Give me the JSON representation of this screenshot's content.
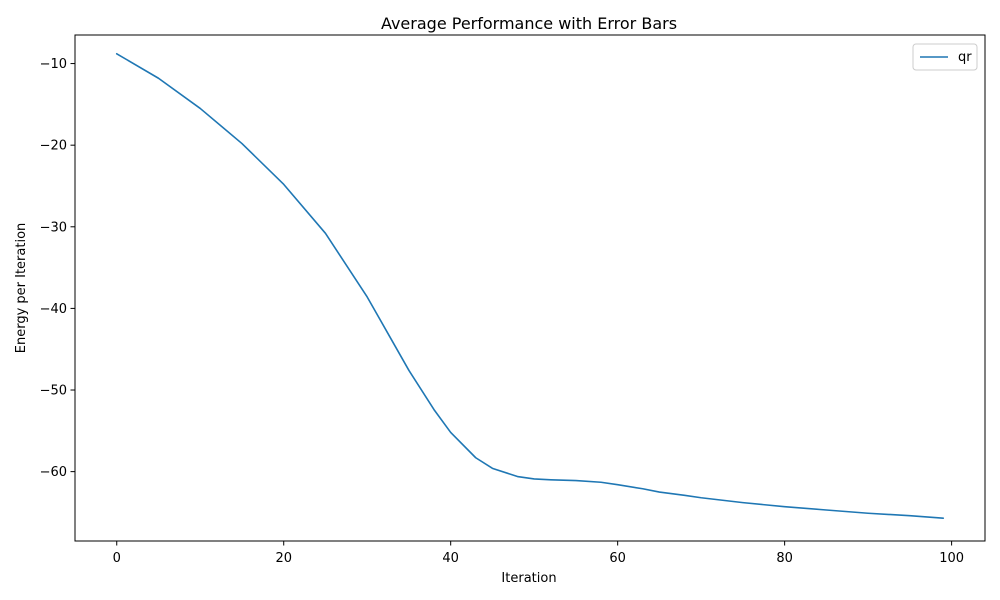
{
  "chart_data": {
    "type": "line",
    "title": "Average Performance with Error Bars",
    "xlabel": "Iteration",
    "ylabel": "Energy per Iteration",
    "xlim": [
      -5,
      104
    ],
    "ylim": [
      -68.5,
      -6.5
    ],
    "xticks": [
      0,
      20,
      40,
      60,
      80,
      100
    ],
    "yticks": [
      -10,
      -20,
      -30,
      -40,
      -50,
      -60
    ],
    "xtick_labels": [
      "0",
      "20",
      "40",
      "60",
      "80",
      "100"
    ],
    "ytick_labels": [
      "−10",
      "−20",
      "−30",
      "−40",
      "−50",
      "−60"
    ],
    "grid": false,
    "legend": {
      "position": "top-right",
      "entries": [
        "qr"
      ]
    },
    "series": [
      {
        "name": "qr",
        "color": "#1f77b4",
        "x": [
          0,
          5,
          10,
          15,
          20,
          25,
          30,
          33,
          35,
          38,
          40,
          43,
          45,
          48,
          50,
          52,
          55,
          58,
          60,
          63,
          65,
          68,
          70,
          75,
          80,
          85,
          90,
          95,
          99
        ],
        "y": [
          -8.8,
          -11.8,
          -15.5,
          -19.8,
          -24.8,
          -30.8,
          -38.6,
          -44.0,
          -47.6,
          -52.4,
          -55.2,
          -58.3,
          -59.6,
          -60.6,
          -60.9,
          -61.0,
          -61.1,
          -61.3,
          -61.6,
          -62.1,
          -62.5,
          -62.9,
          -63.2,
          -63.8,
          -64.3,
          -64.7,
          -65.1,
          -65.4,
          -65.7
        ]
      }
    ]
  }
}
